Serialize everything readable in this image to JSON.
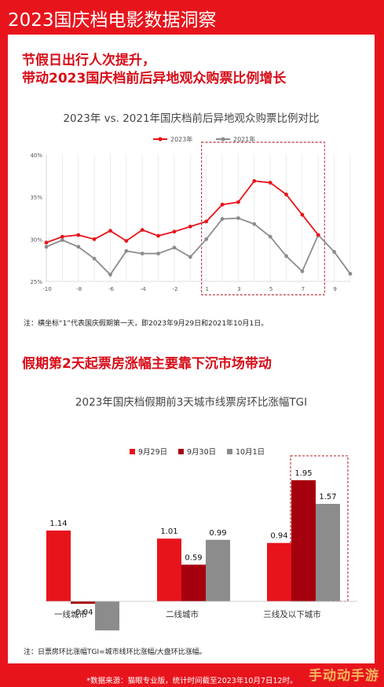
{
  "header": {
    "title": "2023国庆档电影数据洞察"
  },
  "section1": {
    "title_line1": "节假日出行人次提升，",
    "title_line2": "带动2023国庆档前后异地观众购票比例增长"
  },
  "section2": {
    "title": "假期第2天起票房涨幅主要靠下沉市场带动"
  },
  "footer": {
    "source": "*数据来源：猫眼专业版，统计时间截至2023年10月7日12时。"
  },
  "watermark": {
    "text": "手动动手游"
  },
  "colors": {
    "red": "#e8141c",
    "dark_red": "#a5000d",
    "gray": "#8c8c8c"
  },
  "chart_data": [
    {
      "type": "line",
      "title": "2023年 vs. 2021年国庆档前后异地观众购票比例对比",
      "x": [
        -10,
        -9,
        -8,
        -7,
        -6,
        -5,
        -4,
        -3,
        -2,
        -1,
        1,
        2,
        3,
        4,
        5,
        6,
        7,
        8,
        9,
        10
      ],
      "x_tick_labels": [
        "-10",
        "-8",
        "-6",
        "-4",
        "-2",
        "1",
        "3",
        "5",
        "7",
        "9"
      ],
      "y_tick_labels": [
        "25%",
        "30%",
        "35%",
        "40%"
      ],
      "ylim": [
        25,
        40
      ],
      "y_unit": "%",
      "grid": "vertical",
      "legend": "top-center",
      "highlight_range": [
        1,
        8
      ],
      "series": [
        {
          "name": "2023年",
          "color": "#e8141c",
          "values": [
            29.6,
            30.3,
            30.5,
            30.0,
            31.0,
            29.8,
            31.1,
            30.4,
            30.9,
            31.5,
            32.1,
            34.1,
            34.4,
            36.9,
            36.7,
            35.3,
            32.9,
            30.5,
            null,
            null
          ]
        },
        {
          "name": "2021年",
          "color": "#8c8c8c",
          "values": [
            29.1,
            29.9,
            29.1,
            27.7,
            25.8,
            28.6,
            28.3,
            28.3,
            29.0,
            27.9,
            30.0,
            32.4,
            32.5,
            31.8,
            30.3,
            28.0,
            26.2,
            30.5,
            28.5,
            25.9
          ]
        }
      ],
      "note": "注：横坐标“1”代表国庆假期第一天，即2023年9月29日和2021年10月1日。"
    },
    {
      "type": "bar",
      "title": "2023年国庆档假期前3天城市线票房环比涨幅TGI",
      "categories": [
        "一线城市",
        "二线城市",
        "三线及以下城市"
      ],
      "series": [
        {
          "name": "9月29日",
          "color": "#e8141c",
          "values": [
            1.14,
            1.01,
            0.94
          ]
        },
        {
          "name": "9月30日",
          "color": "#a5000d",
          "values": [
            -0.04,
            0.59,
            1.95
          ]
        },
        {
          "name": "10月1日",
          "color": "#8c8c8c",
          "values": [
            -0.68,
            0.99,
            1.57
          ]
        }
      ],
      "legend": "top-center",
      "highlight_category": "三线及以下城市",
      "note": "注：日票房环比涨幅TGI=城市线环比涨幅/大盘环比涨幅。"
    }
  ]
}
